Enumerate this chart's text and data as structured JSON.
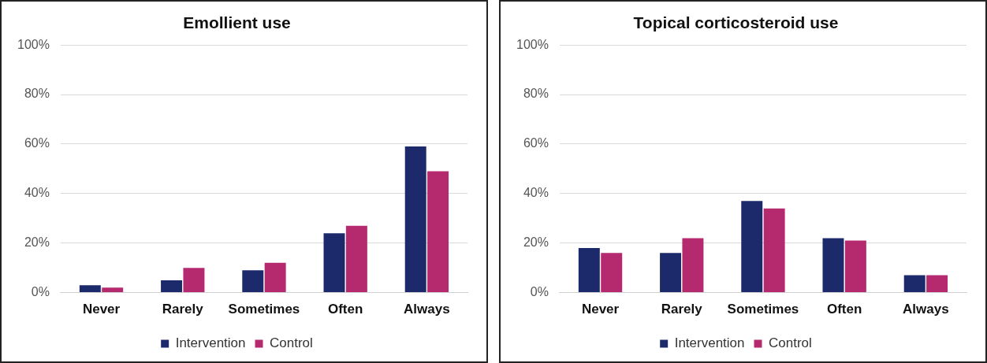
{
  "chart_data": [
    {
      "type": "bar",
      "title": "Emollient use",
      "categories": [
        "Never",
        "Rarely",
        "Sometimes",
        "Often",
        "Always"
      ],
      "series": [
        {
          "name": "Intervention",
          "color": "#1c2a6b",
          "values": [
            3,
            5,
            9,
            24,
            59
          ]
        },
        {
          "name": "Control",
          "color": "#b5296f",
          "values": [
            2,
            10,
            12,
            27,
            49
          ]
        }
      ],
      "ylim": [
        0,
        100
      ],
      "yticks": [
        {
          "value": 0,
          "label": "0%"
        },
        {
          "value": 20,
          "label": "20%"
        },
        {
          "value": 40,
          "label": "40%"
        },
        {
          "value": 60,
          "label": "60%"
        },
        {
          "value": 80,
          "label": "80%"
        },
        {
          "value": 100,
          "label": "100%"
        }
      ],
      "grid": "y",
      "legend": "bottom"
    },
    {
      "type": "bar",
      "title": "Topical corticosteroid use",
      "categories": [
        "Never",
        "Rarely",
        "Sometimes",
        "Often",
        "Always"
      ],
      "series": [
        {
          "name": "Intervention",
          "color": "#1c2a6b",
          "values": [
            18,
            16,
            37,
            22,
            7
          ]
        },
        {
          "name": "Control",
          "color": "#b5296f",
          "values": [
            16,
            22,
            34,
            21,
            7
          ]
        }
      ],
      "ylim": [
        0,
        100
      ],
      "yticks": [
        {
          "value": 0,
          "label": "0%"
        },
        {
          "value": 20,
          "label": "20%"
        },
        {
          "value": 40,
          "label": "40%"
        },
        {
          "value": 60,
          "label": "60%"
        },
        {
          "value": 80,
          "label": "80%"
        },
        {
          "value": 100,
          "label": "100%"
        }
      ],
      "grid": "y",
      "legend": "bottom"
    }
  ]
}
